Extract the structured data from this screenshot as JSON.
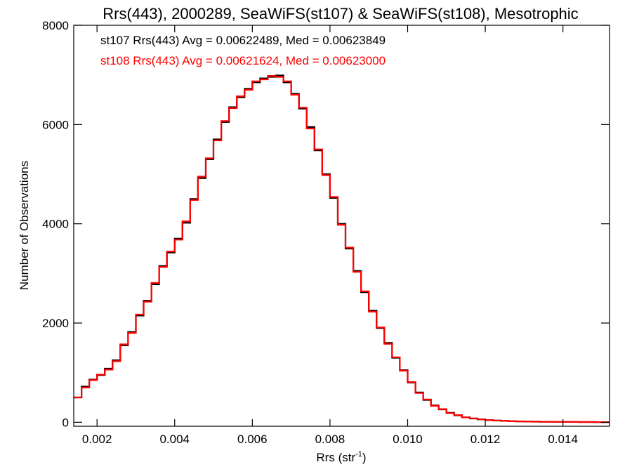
{
  "chart_data": {
    "type": "line",
    "title": "Rrs(443), 2000289, SeaWiFS(st107) & SeaWiFS(st108), Mesotrophic",
    "xlabel_main": "Rrs (str",
    "xlabel_sup": "-1",
    "xlabel_end": ")",
    "ylabel": "Number of Observations",
    "xlim": [
      0.0014,
      0.0152
    ],
    "ylim": [
      -80,
      8000
    ],
    "xticks": [
      0.002,
      0.004,
      0.006,
      0.008,
      0.01,
      0.012,
      0.014
    ],
    "xtick_labels": [
      "0.002",
      "0.004",
      "0.006",
      "0.008",
      "0.010",
      "0.012",
      "0.014"
    ],
    "yticks": [
      0,
      2000,
      4000,
      6000,
      8000
    ],
    "ytick_labels": [
      "0",
      "2000",
      "4000",
      "6000",
      "8000"
    ],
    "grid": false,
    "stair": true,
    "annotations": [
      {
        "text": "st107 Rrs(443) Avg = 0.00622489, Med = 0.00623849",
        "color": "#000000"
      },
      {
        "text": "st108 Rrs(443) Avg = 0.00621624, Med = 0.00623000",
        "color": "#ff0000"
      }
    ],
    "x": [
      0.0014,
      0.0016,
      0.0018,
      0.002,
      0.0022,
      0.0024,
      0.0026,
      0.0028,
      0.003,
      0.0032,
      0.0034,
      0.0036,
      0.0038,
      0.004,
      0.0042,
      0.0044,
      0.0046,
      0.0048,
      0.005,
      0.0052,
      0.0054,
      0.0056,
      0.0058,
      0.006,
      0.0062,
      0.0064,
      0.0066,
      0.0068,
      0.007,
      0.0072,
      0.0074,
      0.0076,
      0.0078,
      0.008,
      0.0082,
      0.0084,
      0.0086,
      0.0088,
      0.009,
      0.0092,
      0.0094,
      0.0096,
      0.0098,
      0.01,
      0.0102,
      0.0104,
      0.0106,
      0.0108,
      0.011,
      0.0112,
      0.0114,
      0.0116,
      0.0118,
      0.012,
      0.0122,
      0.0124,
      0.0126,
      0.0128,
      0.013,
      0.0132,
      0.0134,
      0.0136,
      0.0138,
      0.014,
      0.0142,
      0.0144,
      0.0146,
      0.0148,
      0.015,
      0.0152
    ],
    "series": [
      {
        "name": "st107",
        "color": "#000000",
        "values": [
          500,
          720,
          860,
          950,
          1080,
          1250,
          1550,
          1820,
          2150,
          2450,
          2780,
          3150,
          3420,
          3700,
          4020,
          4500,
          4920,
          5300,
          5700,
          6050,
          6350,
          6550,
          6720,
          6850,
          6930,
          6960,
          6990,
          6850,
          6620,
          6320,
          5950,
          5480,
          5000,
          4520,
          4000,
          3500,
          3050,
          2620,
          2250,
          1900,
          1600,
          1300,
          1050,
          800,
          600,
          450,
          340,
          260,
          190,
          140,
          100,
          75,
          60,
          45,
          35,
          28,
          22,
          18,
          15,
          12,
          10,
          9,
          8,
          7,
          6,
          5,
          5,
          4,
          4,
          4
        ]
      },
      {
        "name": "st108",
        "color": "#ff0000",
        "values": [
          500,
          700,
          850,
          960,
          1060,
          1230,
          1570,
          1800,
          2170,
          2430,
          2810,
          3130,
          3440,
          3680,
          4050,
          4480,
          4950,
          5320,
          5680,
          6070,
          6330,
          6570,
          6700,
          6870,
          6910,
          6980,
          6960,
          6870,
          6600,
          6340,
          5920,
          5500,
          4980,
          4540,
          3980,
          3520,
          3030,
          2640,
          2230,
          1910,
          1580,
          1310,
          1040,
          810,
          590,
          460,
          330,
          265,
          185,
          145,
          98,
          78,
          58,
          46,
          34,
          29,
          21,
          19,
          14,
          13,
          10,
          9,
          8,
          7,
          6,
          5,
          5,
          4,
          4,
          4
        ]
      }
    ]
  }
}
